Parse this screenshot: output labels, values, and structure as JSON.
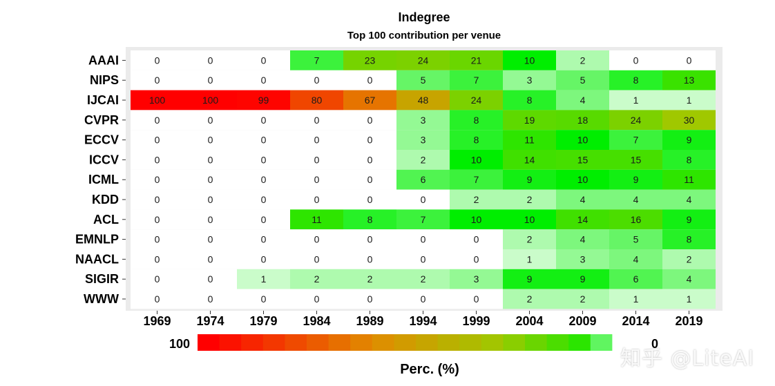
{
  "chart_data": {
    "type": "heatmap",
    "title": "Indegree",
    "subtitle": "Top 100 contribution per venue",
    "xlabel": "",
    "ylabel": "",
    "x": [
      "1969",
      "1974",
      "1979",
      "1984",
      "1989",
      "1994",
      "1999",
      "2004",
      "2009",
      "2014",
      "2019"
    ],
    "y": [
      "AAAI",
      "NIPS",
      "IJCAI",
      "CVPR",
      "ECCV",
      "ICCV",
      "ICML",
      "KDD",
      "ACL",
      "EMNLP",
      "NAACL",
      "SIGIR",
      "WWW"
    ],
    "values": [
      [
        0,
        0,
        0,
        7,
        23,
        24,
        21,
        10,
        2,
        0,
        0
      ],
      [
        0,
        0,
        0,
        0,
        0,
        5,
        7,
        3,
        5,
        8,
        13
      ],
      [
        100,
        100,
        99,
        80,
        67,
        48,
        24,
        8,
        4,
        1,
        1
      ],
      [
        0,
        0,
        0,
        0,
        0,
        3,
        8,
        19,
        18,
        24,
        30
      ],
      [
        0,
        0,
        0,
        0,
        0,
        3,
        8,
        11,
        10,
        7,
        9
      ],
      [
        0,
        0,
        0,
        0,
        0,
        2,
        10,
        14,
        15,
        15,
        8
      ],
      [
        0,
        0,
        0,
        0,
        0,
        6,
        7,
        9,
        10,
        9,
        11
      ],
      [
        0,
        0,
        0,
        0,
        0,
        0,
        2,
        2,
        4,
        4,
        4
      ],
      [
        0,
        0,
        0,
        11,
        8,
        7,
        10,
        10,
        14,
        16,
        9
      ],
      [
        0,
        0,
        0,
        0,
        0,
        0,
        0,
        2,
        4,
        5,
        8
      ],
      [
        0,
        0,
        0,
        0,
        0,
        0,
        0,
        1,
        3,
        4,
        2
      ],
      [
        0,
        0,
        1,
        2,
        2,
        2,
        3,
        9,
        9,
        6,
        4
      ],
      [
        0,
        0,
        0,
        0,
        0,
        0,
        0,
        2,
        2,
        1,
        1
      ]
    ],
    "legend": {
      "title": "Perc. (%)",
      "placement": "bottom",
      "max_label": "100",
      "min_label": "0",
      "scale": [
        "#ff0000",
        "#00ee00",
        "#ffffff"
      ]
    },
    "grid": false
  },
  "watermark": "知乎 @LiteAI"
}
